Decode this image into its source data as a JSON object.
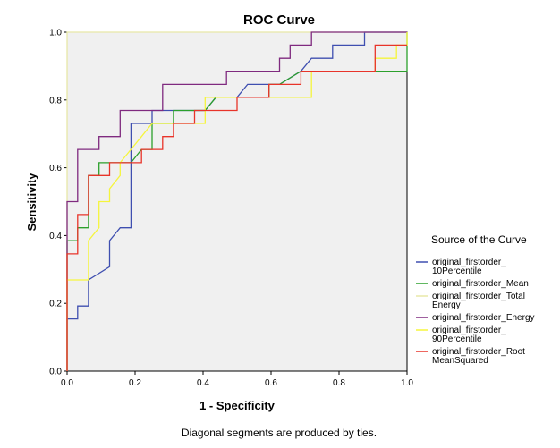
{
  "chart_data": {
    "type": "line",
    "title": "ROC Curve",
    "xlabel": "1 - Specificity",
    "ylabel": "Sensitivity",
    "xlim": [
      0,
      1
    ],
    "ylim": [
      0,
      1
    ],
    "xticks": [
      "0.0",
      "0.2",
      "0.4",
      "0.6",
      "0.8",
      "1.0"
    ],
    "yticks": [
      "0.0",
      "0.2",
      "0.4",
      "0.6",
      "0.8",
      "1.0"
    ],
    "grid": false,
    "legend_title": "Source of the Curve",
    "legend_position": "right",
    "footnote": "Diagonal segments are produced by ties.",
    "series": [
      {
        "name": "original_firstorder_10Percentile",
        "legend_lines": [
          "original_firstorder_",
          "10Percentile"
        ],
        "color": "#3f4fb0",
        "points": [
          [
            0,
            0
          ],
          [
            0,
            0.154
          ],
          [
            0.031,
            0.154
          ],
          [
            0.031,
            0.192
          ],
          [
            0.063,
            0.192
          ],
          [
            0.063,
            0.269
          ],
          [
            0.125,
            0.308
          ],
          [
            0.125,
            0.385
          ],
          [
            0.156,
            0.423
          ],
          [
            0.188,
            0.423
          ],
          [
            0.188,
            0.731
          ],
          [
            0.25,
            0.731
          ],
          [
            0.25,
            0.769
          ],
          [
            0.406,
            0.769
          ],
          [
            0.438,
            0.808
          ],
          [
            0.5,
            0.808
          ],
          [
            0.531,
            0.846
          ],
          [
            0.625,
            0.846
          ],
          [
            0.688,
            0.885
          ],
          [
            0.719,
            0.923
          ],
          [
            0.781,
            0.923
          ],
          [
            0.781,
            0.962
          ],
          [
            0.875,
            0.962
          ],
          [
            0.875,
            1
          ],
          [
            1,
            1
          ]
        ]
      },
      {
        "name": "original_firstorder_Mean",
        "legend_lines": [
          "original_firstorder_Mean"
        ],
        "color": "#2ca02c",
        "points": [
          [
            0,
            0
          ],
          [
            0,
            0.385
          ],
          [
            0.031,
            0.385
          ],
          [
            0.031,
            0.423
          ],
          [
            0.063,
            0.423
          ],
          [
            0.063,
            0.577
          ],
          [
            0.094,
            0.577
          ],
          [
            0.094,
            0.615
          ],
          [
            0.188,
            0.615
          ],
          [
            0.219,
            0.654
          ],
          [
            0.25,
            0.654
          ],
          [
            0.25,
            0.731
          ],
          [
            0.313,
            0.731
          ],
          [
            0.313,
            0.769
          ],
          [
            0.406,
            0.769
          ],
          [
            0.438,
            0.808
          ],
          [
            0.594,
            0.808
          ],
          [
            0.594,
            0.846
          ],
          [
            0.625,
            0.846
          ],
          [
            0.688,
            0.885
          ],
          [
            1,
            0.885
          ],
          [
            1,
            1
          ]
        ]
      },
      {
        "name": "original_firstorder_TotalEnergy",
        "legend_lines": [
          "original_firstorder_Total",
          "Energy"
        ],
        "color": "#e8e8a8",
        "points": [
          [
            0,
            0
          ],
          [
            0,
            1
          ],
          [
            1,
            1
          ]
        ]
      },
      {
        "name": "original_firstorder_Energy",
        "legend_lines": [
          "original_firstorder_Energy"
        ],
        "color": "#7f2a7f",
        "points": [
          [
            0,
            0
          ],
          [
            0,
            0.5
          ],
          [
            0.031,
            0.5
          ],
          [
            0.031,
            0.654
          ],
          [
            0.094,
            0.654
          ],
          [
            0.094,
            0.692
          ],
          [
            0.156,
            0.692
          ],
          [
            0.156,
            0.769
          ],
          [
            0.281,
            0.769
          ],
          [
            0.281,
            0.846
          ],
          [
            0.469,
            0.846
          ],
          [
            0.469,
            0.885
          ],
          [
            0.625,
            0.885
          ],
          [
            0.625,
            0.923
          ],
          [
            0.656,
            0.923
          ],
          [
            0.656,
            0.962
          ],
          [
            0.719,
            0.962
          ],
          [
            0.719,
            1
          ],
          [
            1,
            1
          ]
        ]
      },
      {
        "name": "original_firstorder_90Percentile",
        "legend_lines": [
          "original_firstorder_",
          "90Percentile"
        ],
        "color": "#f5f53c",
        "points": [
          [
            0,
            0
          ],
          [
            0,
            0.269
          ],
          [
            0.063,
            0.269
          ],
          [
            0.063,
            0.385
          ],
          [
            0.094,
            0.423
          ],
          [
            0.094,
            0.5
          ],
          [
            0.125,
            0.5
          ],
          [
            0.125,
            0.538
          ],
          [
            0.156,
            0.577
          ],
          [
            0.156,
            0.615
          ],
          [
            0.188,
            0.654
          ],
          [
            0.219,
            0.692
          ],
          [
            0.25,
            0.731
          ],
          [
            0.406,
            0.731
          ],
          [
            0.406,
            0.808
          ],
          [
            0.688,
            0.808
          ],
          [
            0.719,
            0.808
          ],
          [
            0.719,
            0.885
          ],
          [
            0.906,
            0.885
          ],
          [
            0.906,
            0.923
          ],
          [
            0.969,
            0.923
          ],
          [
            0.969,
            0.962
          ],
          [
            1,
            0.962
          ],
          [
            1,
            1
          ]
        ]
      },
      {
        "name": "original_firstorder_RootMeanSquared",
        "legend_lines": [
          "original_firstorder_Root",
          "MeanSquared"
        ],
        "color": "#e8342a",
        "points": [
          [
            0,
            0
          ],
          [
            0,
            0.346
          ],
          [
            0.031,
            0.346
          ],
          [
            0.031,
            0.462
          ],
          [
            0.063,
            0.462
          ],
          [
            0.063,
            0.577
          ],
          [
            0.125,
            0.577
          ],
          [
            0.125,
            0.615
          ],
          [
            0.219,
            0.615
          ],
          [
            0.219,
            0.654
          ],
          [
            0.281,
            0.654
          ],
          [
            0.281,
            0.692
          ],
          [
            0.313,
            0.692
          ],
          [
            0.313,
            0.731
          ],
          [
            0.375,
            0.731
          ],
          [
            0.375,
            0.769
          ],
          [
            0.5,
            0.769
          ],
          [
            0.5,
            0.808
          ],
          [
            0.594,
            0.808
          ],
          [
            0.594,
            0.846
          ],
          [
            0.688,
            0.846
          ],
          [
            0.688,
            0.885
          ],
          [
            0.906,
            0.885
          ],
          [
            0.906,
            0.962
          ],
          [
            1,
            0.962
          ]
        ]
      }
    ]
  }
}
